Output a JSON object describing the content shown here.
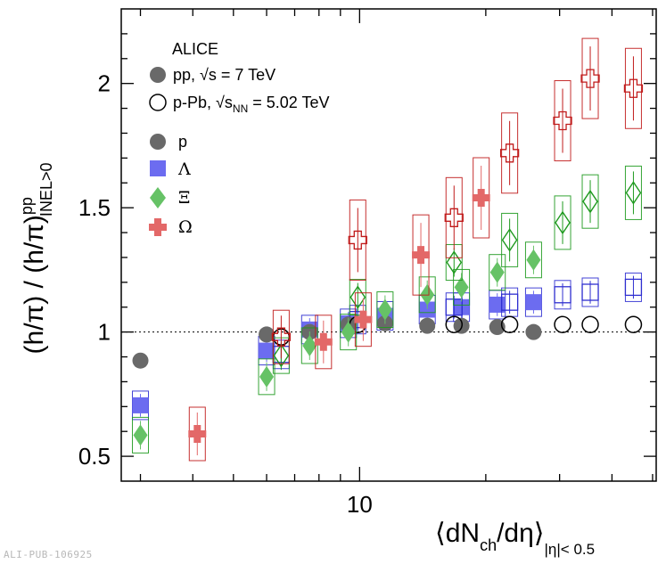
{
  "chart_data": {
    "type": "scatter",
    "title": "",
    "collaboration": "ALICE",
    "ylabel": {
      "main": "(h/π) / (h/π)",
      "sup": "pp",
      "sub": "INEL>0"
    },
    "xlabel": {
      "open": "⟨dN",
      "ch": "ch",
      "slash": "/dη⟩",
      "range": "|η|< 0.5"
    },
    "xscale": "log",
    "xlim": [
      2.7,
      51
    ],
    "ylim": [
      0.4,
      2.3
    ],
    "yticks": [
      0.5,
      1.0,
      1.5,
      2.0
    ],
    "ytick_labels": [
      "0.5",
      "1",
      "1.5",
      "2"
    ],
    "xticks": [
      10
    ],
    "xtick_labels": [
      "10"
    ],
    "reference_line": 1.0,
    "legend_systems": [
      {
        "label": "pp, ",
        "sqrt": "√",
        "energy_var": "s",
        "energy_sub": "",
        "energy_val": " = 7 TeV",
        "marker": "filled"
      },
      {
        "label": "p-Pb, ",
        "sqrt": "√",
        "energy_var": "s",
        "energy_sub": "NN",
        "energy_val": " = 5.02 TeV",
        "marker": "open"
      }
    ],
    "legend_species": [
      {
        "label": "p",
        "color": "#696969",
        "marker": "circle"
      },
      {
        "label": "Λ",
        "color": "#6c6cf0",
        "marker": "square"
      },
      {
        "label": "Ξ",
        "color": "#66c266",
        "marker": "diamond"
      },
      {
        "label": "Ω",
        "color": "#e36868",
        "marker": "cross"
      }
    ],
    "series": [
      {
        "name": "p pp 7 TeV",
        "species": "p",
        "system": "pp",
        "x": [
          3.0,
          6.0,
          7.6,
          9.4,
          11.5,
          14.5,
          17.5,
          21.3,
          26.0
        ],
        "y": [
          0.885,
          0.99,
          1.0,
          1.03,
          1.035,
          1.025,
          1.025,
          1.02,
          1.0
        ]
      },
      {
        "name": "p p-Pb 5.02 TeV",
        "species": "p",
        "system": "p-Pb",
        "x": [
          6.5,
          9.9,
          16.8,
          22.8,
          30.5,
          35.5,
          45.0
        ],
        "y": [
          0.98,
          1.03,
          1.03,
          1.03,
          1.03,
          1.03,
          1.03
        ]
      },
      {
        "name": "Λ pp 7 TeV",
        "species": "Λ",
        "system": "pp",
        "x": [
          3.0,
          6.0,
          7.6,
          9.4,
          11.5,
          14.5,
          17.5,
          21.3,
          26.0
        ],
        "y": [
          0.705,
          0.925,
          1.01,
          1.035,
          1.065,
          1.09,
          1.1,
          1.11,
          1.12
        ]
      },
      {
        "name": "Λ p-Pb 5.02 TeV",
        "species": "Λ",
        "system": "p-Pb",
        "x": [
          6.5,
          9.9,
          16.8,
          22.8,
          30.5,
          35.5,
          45.0
        ],
        "y": [
          0.91,
          1.05,
          1.1,
          1.12,
          1.15,
          1.16,
          1.18
        ]
      },
      {
        "name": "Ξ pp 7 TeV",
        "species": "Ξ",
        "system": "pp",
        "x": [
          3.0,
          6.0,
          7.6,
          9.4,
          11.5,
          14.5,
          17.5,
          21.3,
          26.0
        ],
        "y": [
          0.585,
          0.82,
          0.945,
          1.0,
          1.09,
          1.15,
          1.18,
          1.24,
          1.29
        ]
      },
      {
        "name": "Ξ p-Pb 5.02 TeV",
        "species": "Ξ",
        "system": "p-Pb",
        "x": [
          6.5,
          9.9,
          16.8,
          22.8,
          30.5,
          35.5,
          45.0
        ],
        "y": [
          0.905,
          1.14,
          1.28,
          1.37,
          1.44,
          1.525,
          1.56
        ]
      },
      {
        "name": "Ω pp 7 TeV",
        "species": "Ω",
        "system": "pp",
        "x": [
          4.1,
          8.2,
          10.2,
          14.0,
          19.5
        ],
        "y": [
          0.59,
          0.96,
          1.05,
          1.31,
          1.54
        ]
      },
      {
        "name": "Ω p-Pb 5.02 TeV",
        "species": "Ω",
        "system": "p-Pb",
        "x": [
          6.5,
          9.9,
          16.8,
          22.8,
          30.5,
          35.5,
          45.0
        ],
        "y": [
          0.98,
          1.37,
          1.46,
          1.72,
          1.85,
          2.02,
          1.98
        ]
      }
    ]
  },
  "watermark": "ALI-PUB-106925"
}
